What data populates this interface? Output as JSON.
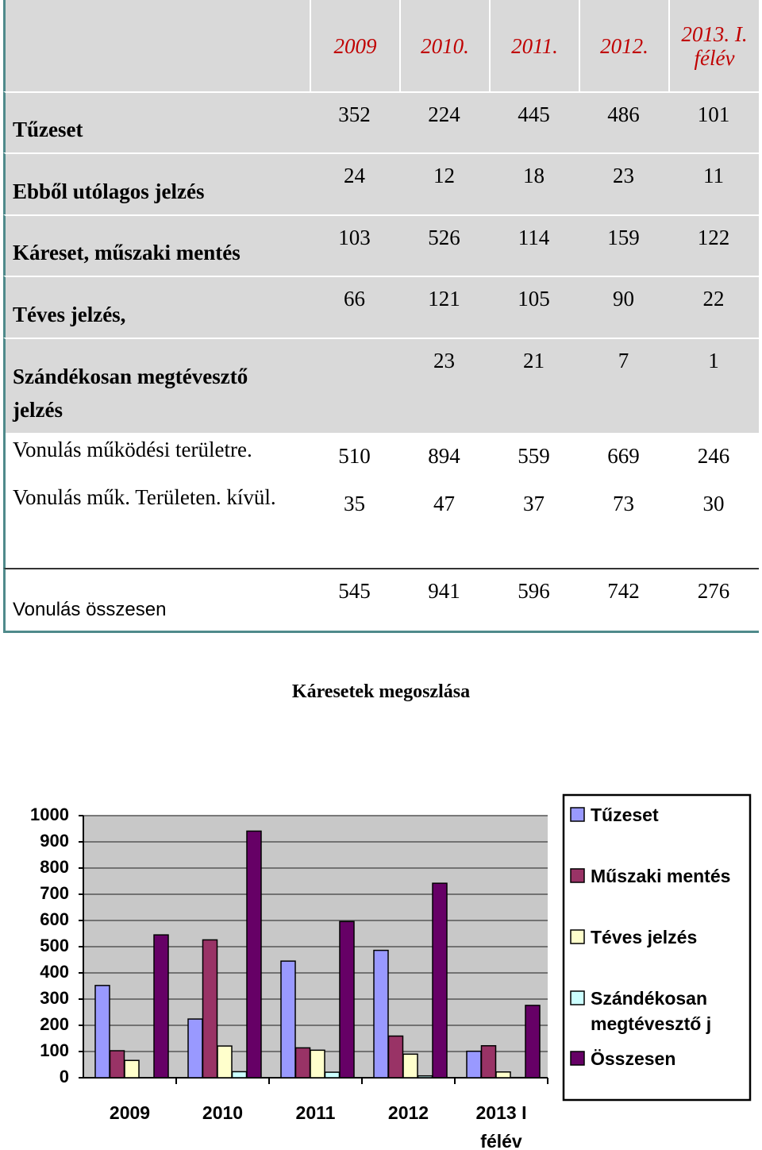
{
  "table": {
    "header": [
      "2009",
      "2010.",
      "2011.",
      "2012.",
      "2013. I. félév"
    ],
    "rows": [
      [
        "Tűzeset",
        "352",
        "224",
        "445",
        "486",
        "101"
      ],
      [
        "Ebből utólagos jelzés",
        "24",
        "12",
        "18",
        "23",
        "11"
      ],
      [
        "Káreset, műszaki mentés",
        "103",
        "526",
        "114",
        "159",
        "122"
      ],
      [
        "Téves jelzés,",
        "66",
        "121",
        "105",
        "90",
        "22"
      ],
      [
        "Szándékosan megtévesztő jelzés",
        null,
        "23",
        "21",
        "7",
        "1"
      ],
      [
        "Vonulás működési területre.",
        "510",
        "894",
        "559",
        "669",
        "246"
      ],
      [
        "Vonulás műk. Területen. kívül.",
        "35",
        "47",
        "37",
        "73",
        "30"
      ],
      [
        "Vonulás összesen",
        "545",
        "941",
        "596",
        "742",
        "276"
      ]
    ]
  },
  "chart_data": {
    "type": "bar",
    "title": "Káresetek megoszlása",
    "categories": [
      "2009",
      "2010",
      "2011",
      "2012",
      "2013 I félév"
    ],
    "series": [
      {
        "name": "Tűzeset",
        "color": "#9999ff",
        "values": [
          352,
          224,
          445,
          486,
          101
        ]
      },
      {
        "name": "Műszaki mentés",
        "color": "#993366",
        "values": [
          103,
          526,
          114,
          159,
          122
        ]
      },
      {
        "name": "Téves jelzés",
        "color": "#ffffcc",
        "values": [
          66,
          121,
          105,
          90,
          22
        ]
      },
      {
        "name": "Szándékosan megtévesztő j",
        "color": "#ccffff",
        "values": [
          null,
          23,
          21,
          7,
          1
        ]
      },
      {
        "name": "Összesen",
        "color": "#660066",
        "values": [
          545,
          941,
          596,
          742,
          276
        ]
      }
    ],
    "ylim": [
      0,
      1000
    ],
    "yticks": [
      0,
      100,
      200,
      300,
      400,
      500,
      600,
      700,
      800,
      900,
      1000
    ],
    "grid": true,
    "legend": "right"
  }
}
